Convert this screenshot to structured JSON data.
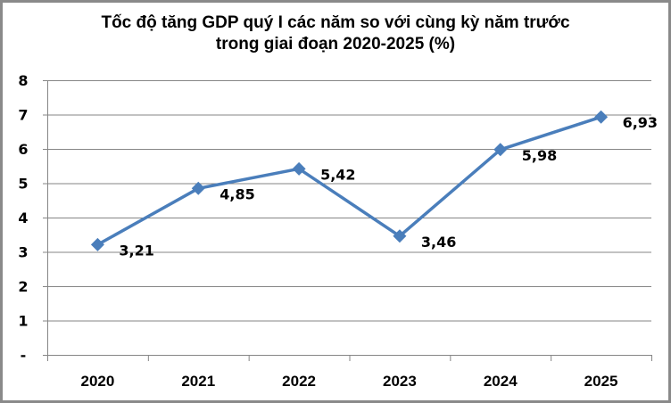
{
  "title_line1": "Tốc độ tăng GDP quý I các năm so với cùng kỳ năm trước",
  "title_line2": "trong giai đoạn 2020-2025 (%)",
  "colors": {
    "line": "#4a7ebb",
    "gridline": "#868686",
    "border": "#8a8a8a"
  },
  "chart_data": {
    "type": "line",
    "title": "Tốc độ tăng GDP quý I các năm so với cùng kỳ năm trước trong giai đoạn 2020-2025 (%)",
    "categories": [
      "2020",
      "2021",
      "2022",
      "2023",
      "2024",
      "2025"
    ],
    "series": [
      {
        "name": "Tốc độ tăng GDP quý I (%)",
        "values": [
          3.21,
          4.85,
          5.42,
          3.46,
          5.98,
          6.93
        ],
        "labels": [
          "3,21",
          "4,85",
          "5,42",
          "3,46",
          "5,98",
          "6,93"
        ]
      }
    ],
    "xlabel": "",
    "ylabel": "",
    "ylim": [
      0,
      8
    ],
    "yticks": [
      "-",
      "1",
      "2",
      "3",
      "4",
      "5",
      "6",
      "7",
      "8"
    ],
    "grid": true,
    "legend": "none",
    "marker": "diamond"
  }
}
